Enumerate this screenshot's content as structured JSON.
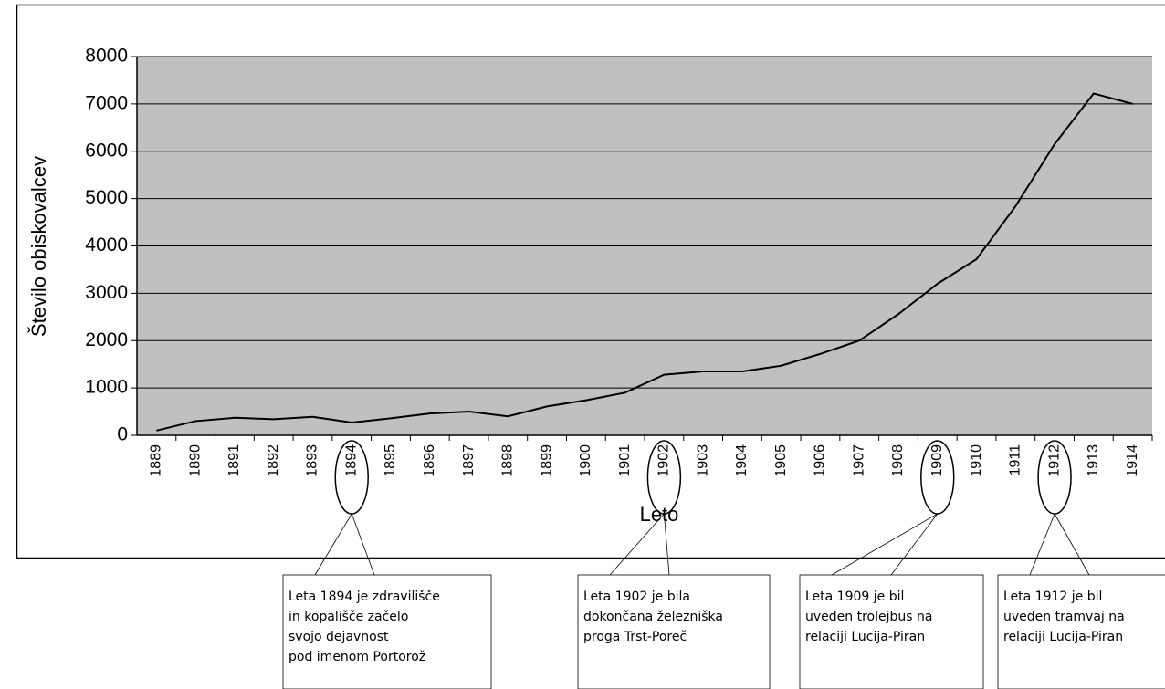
{
  "chart_data": {
    "type": "line",
    "x_label": "Leto",
    "y_label": "Število obiskovalcev",
    "categories": [
      "1889",
      "1890",
      "1891",
      "1892",
      "1893",
      "1894",
      "1895",
      "1896",
      "1897",
      "1898",
      "1899",
      "1900",
      "1901",
      "1902",
      "1903",
      "1904",
      "1905",
      "1906",
      "1907",
      "1908",
      "1909",
      "1910",
      "1911",
      "1912",
      "1913",
      "1914"
    ],
    "series": [
      {
        "name": "Število obiskovalcev",
        "color": "#000000",
        "values": [
          100,
          300,
          370,
          340,
          390,
          270,
          360,
          460,
          500,
          400,
          610,
          740,
          900,
          1280,
          1350,
          1350,
          1470,
          1720,
          2000,
          2560,
          3200,
          3720,
          4840,
          6150,
          7220,
          7000
        ]
      }
    ],
    "ylim": [
      0,
      8000
    ],
    "yticks": [
      0,
      1000,
      2000,
      3000,
      4000,
      5000,
      6000,
      7000,
      8000
    ],
    "grid": true,
    "legend": false,
    "plot_background": "#c0c0c0",
    "annotations": [
      {
        "lines": [
          "Leta 1894 je zdravilišče",
          "in kopališče začelo",
          " svojo dejavnost",
          " pod imenom Portorož"
        ]
      },
      {
        "lines": [
          "Leta 1902 je bila",
          "dokončana železniška",
          "proga Trst-Poreč"
        ]
      },
      {
        "lines": [
          "Leta 1909 je bil",
          "uveden trolejbus na",
          "relaciji Lucija-Piran"
        ]
      },
      {
        "lines": [
          "Leta 1912 je bil",
          "uveden tramvaj na",
          "relaciji Lucija-Piran"
        ]
      }
    ]
  }
}
